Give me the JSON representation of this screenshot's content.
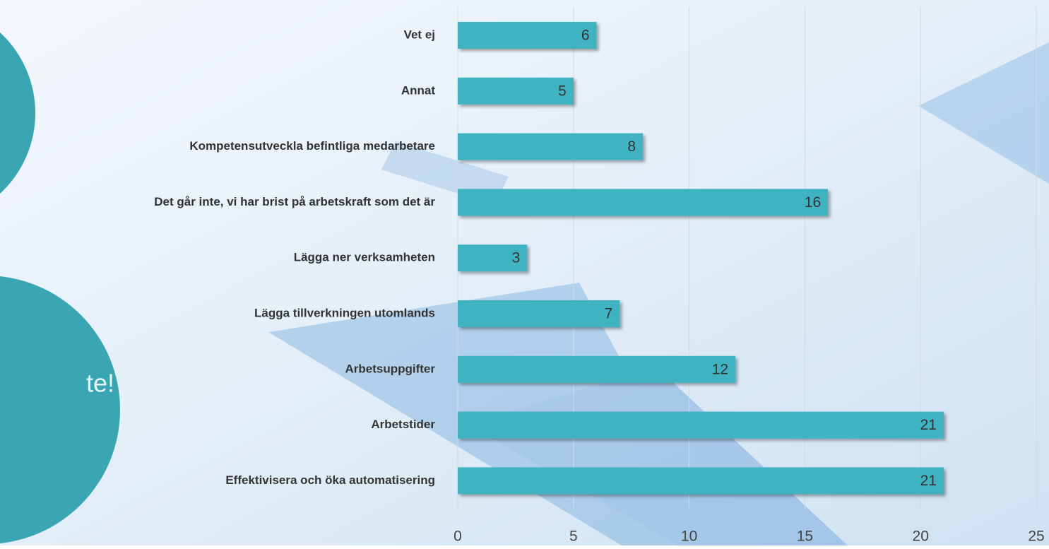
{
  "chart_data": {
    "type": "bar",
    "orientation": "horizontal",
    "categories": [
      "Vet ej",
      "Annat",
      "Kompetensutveckla befintliga medarbetare",
      "Det går inte, vi har brist på arbetskraft som det är",
      "Lägga ner verksamheten",
      "Lägga tillverkningen utomlands",
      "Arbetsuppgifter",
      "Arbetstider",
      "Effektivisera och öka automatisering"
    ],
    "values": [
      6,
      5,
      8,
      16,
      3,
      7,
      12,
      21,
      21
    ],
    "color": "#41b3c3",
    "xlim": [
      0,
      25
    ],
    "xticks": [
      0,
      5,
      10,
      15,
      20,
      25
    ],
    "grid": true
  },
  "slide_text": "te!"
}
